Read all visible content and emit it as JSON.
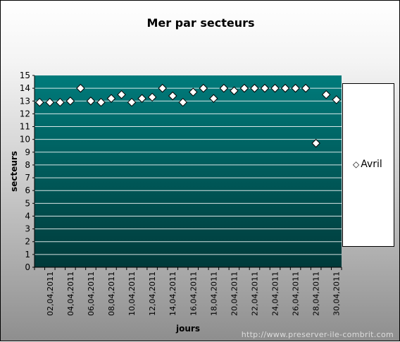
{
  "footer": {
    "url": "http://www.preserver-ile-combrit.com"
  },
  "colors": {
    "plot_top": "#007b7b",
    "plot_bottom": "#003a3a",
    "marker_fill": "#ffffff",
    "marker_stroke": "#000000",
    "gridline": "#ffffff"
  },
  "chart_data": {
    "type": "scatter",
    "title": "Mer par secteurs",
    "xlabel": "jours",
    "ylabel": "secteurs",
    "ylim": [
      0,
      15
    ],
    "yticks": [
      0,
      1,
      2,
      3,
      4,
      5,
      6,
      7,
      8,
      9,
      10,
      11,
      12,
      13,
      14,
      15
    ],
    "grid": true,
    "legend_position": "right",
    "categories": [
      "01,04,2011",
      "02,04,2011",
      "03,04,2011",
      "04,04,2011",
      "05,04,2011",
      "06,04,2011",
      "07,04,2011",
      "08,04,2011",
      "09,04,2011",
      "10,04,2011",
      "11,04,2011",
      "12,04,2011",
      "13,04,2011",
      "14,04,2011",
      "15,04,2011",
      "16,04,2011",
      "17,04,2011",
      "18,04,2011",
      "19,04,2011",
      "20,04,2011",
      "21,04,2011",
      "22,04,2011",
      "23,04,2011",
      "24,04,2011",
      "25,04,2011",
      "26,04,2011",
      "27,04,2011",
      "28,04,2011",
      "29,04,2011",
      "30,04,2011"
    ],
    "tick_labels": [
      "02,04,2011",
      "04,04,2011",
      "06,04,2011",
      "08,04,2011",
      "10,04,2011",
      "12,04,2011",
      "14,04,2011",
      "16,04,2011",
      "18,04,2011",
      "20,04,2011",
      "22,04,2011",
      "24,04,2011",
      "26,04,2011",
      "28,04,2011",
      "30,04,2011"
    ],
    "series": [
      {
        "name": "Avril",
        "values": [
          12.9,
          12.9,
          12.9,
          13.0,
          14.0,
          13.0,
          12.9,
          13.2,
          13.5,
          12.9,
          13.2,
          13.3,
          14.0,
          13.4,
          12.9,
          13.7,
          14.0,
          13.2,
          14.0,
          13.8,
          14.0,
          14.0,
          14.0,
          14.0,
          14.0,
          14.0,
          14.0,
          9.7,
          13.5,
          13.1
        ]
      }
    ]
  }
}
